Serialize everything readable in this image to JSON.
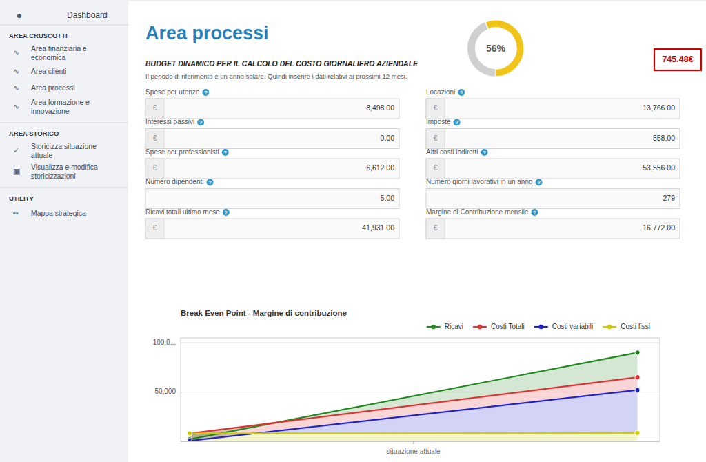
{
  "page": {
    "sidebar": {
      "home": {
        "icon": "●",
        "label": "Dashboard"
      },
      "sections": [
        {
          "title": "AREA CRUSCOTTI",
          "items": [
            {
              "icon": "∿",
              "label": "Area finanziaria e\neconomica"
            },
            {
              "icon": "∿",
              "label": "Area clienti"
            },
            {
              "icon": "∿",
              "label": "Area processi"
            },
            {
              "icon": "∿",
              "label": "Area formazione e\ninnovazione"
            }
          ]
        },
        {
          "title": "AREA STORICO",
          "items": [
            {
              "icon": "✓",
              "label": "Storicizza situazione\nattuale"
            },
            {
              "icon": "▣",
              "label": "Visualizza e modifica\nstoricizzazioni"
            }
          ]
        },
        {
          "title": "UTILITY",
          "items": [
            {
              "icon": "▪▪",
              "label": "Mappa strategica"
            }
          ]
        }
      ]
    },
    "title": "Area processi",
    "title_color": "#2980b9",
    "budget_title": "BUDGET DINAMICO PER IL CALCOLO DEL COSTO GIORNALIERO AZIENDALE",
    "budget_subtitle": "Il periodo di riferimento è un anno solare. Quindi inserire i dati relativi ai prossimi 12 mesi.",
    "value_box": {
      "text": "745.48€",
      "color": "#cc0000"
    },
    "help_icon": "?",
    "currency_symbol": "€",
    "form_rows": [
      [
        {
          "label": "Spese per utenze",
          "value": "8,498.00",
          "euro": true
        },
        {
          "label": "Locazioni",
          "value": "13,766.00",
          "euro": true
        }
      ],
      [
        {
          "label": "Interessi passivi",
          "value": "0.00",
          "euro": true
        },
        {
          "label": "Imposte",
          "value": "558.00",
          "euro": true
        }
      ],
      [
        {
          "label": "Spese per professionisti",
          "value": "6,612.00",
          "euro": true
        },
        {
          "label": "Altri costi indiretti",
          "value": "53,556.00",
          "euro": true
        }
      ],
      [
        {
          "label": "Numero dipendenti",
          "value": "5.00",
          "euro": false
        },
        {
          "label": "Numero giorni lavorativi in un anno",
          "value": "279",
          "euro": false
        }
      ],
      [
        {
          "label": "Ricavi totali ultimo mese",
          "value": "41,931.00",
          "euro": true
        },
        {
          "label": "Margine di Contribuzione mensile",
          "value": "16,772.00",
          "euro": true
        }
      ]
    ]
  },
  "chart_data": [
    {
      "type": "line",
      "title": "Break Even Point - Margine di contribuzione",
      "x": [
        0,
        1
      ],
      "xlim": [
        -0.02,
        1.05
      ],
      "xticks": [
        {
          "value": 0.5,
          "label": "situazione attuale"
        }
      ],
      "ylim": [
        0,
        105000
      ],
      "yticks": [
        {
          "value": 50000,
          "label": "50,000"
        },
        {
          "value": 100000,
          "label": "100,0..."
        }
      ],
      "grid": true,
      "legend": "upper right",
      "marker": "circle",
      "series": [
        {
          "name": "Ricavi",
          "color": "#228822",
          "values": [
            2000,
            90000
          ]
        },
        {
          "name": "Costi Totali",
          "color": "#dd3333",
          "values": [
            8000,
            65000
          ]
        },
        {
          "name": "Costi variabili",
          "color": "#2222cc",
          "values": [
            500,
            52000
          ]
        },
        {
          "name": "Costi fissi",
          "color": "#cccc00",
          "values": [
            8000,
            8500
          ]
        }
      ]
    },
    {
      "type": "gauge",
      "values": [
        56
      ],
      "value_labels": [
        "56%"
      ],
      "ylim": [
        0,
        100
      ],
      "color": "#f0c419"
    }
  ]
}
